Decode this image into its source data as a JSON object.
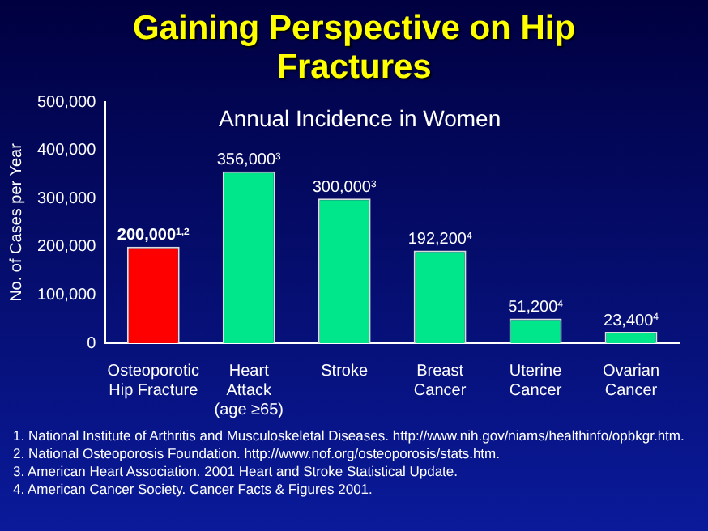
{
  "chart_data": {
    "type": "bar",
    "title": "Gaining Perspective on Hip Fractures",
    "subtitle": "Annual Incidence in Women",
    "ylabel": "No. of Cases per Year",
    "categories": [
      "Osteoporotic\nHip Fracture",
      "Heart\nAttack\n(age ≥65)",
      "Stroke",
      "Breast\nCancer",
      "Uterine\nCancer",
      "Ovarian\nCancer"
    ],
    "values": [
      200000,
      356000,
      300000,
      192200,
      51200,
      23400
    ],
    "colors": [
      "#ff0000",
      "#00e68a",
      "#00e68a",
      "#00e68a",
      "#00e68a",
      "#00e68a"
    ],
    "value_labels": [
      "200,000$^{1,2}$",
      "356,000$^{3}$",
      "300,000$^{3}$",
      "192,200$^{4}$",
      "51,200$^{4}$",
      "23,400$^{4}$"
    ],
    "ylim": [
      0,
      500000
    ],
    "yticks": [
      0,
      {
        "value": 100000,
        "label": "100,000"
      },
      {
        "value": 200000,
        "label": "200,000"
      },
      {
        "value": 300000,
        "label": "300,000"
      },
      {
        "value": 400000,
        "label": "400,000"
      },
      {
        "value": 500000,
        "label": "500,000"
      }
    ],
    "grid": false,
    "legend": false,
    "annotations": [
      "1. National Institute of Arthritis and Musculoskeletal Diseases. http://www.nih.gov/niams/healthinfo/opbkgr.htm.",
      "2. National Osteoporosis Foundation. http://www.nof.org/osteoporosis/stats.htm.",
      "3. American Heart Association. 2001 Heart and Stroke Statistical Update.",
      "4. American Cancer Society. Cancer Facts & Figures 2001."
    ]
  }
}
